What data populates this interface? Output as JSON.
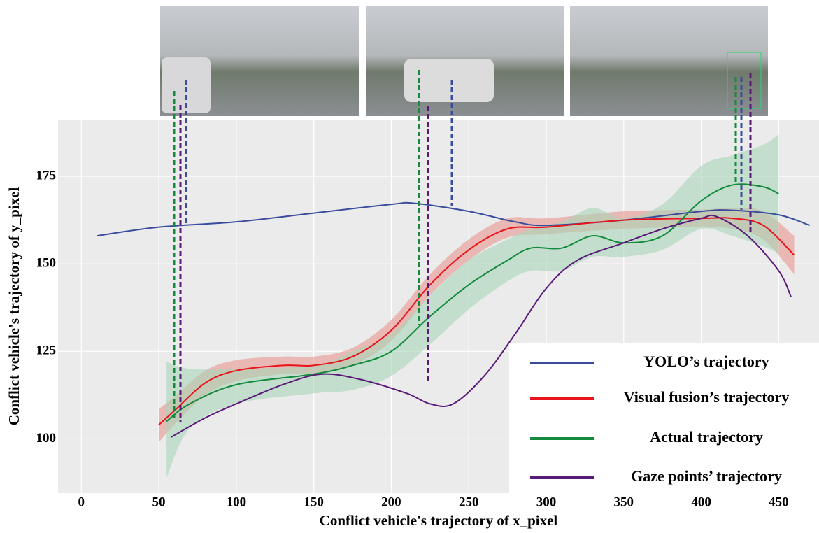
{
  "chart_data": {
    "type": "line",
    "xlabel": "Conflict vehicle's trajectory of x_pixel",
    "ylabel": "Conflict vehicle's trajectory of y_pixel",
    "xlim": [
      -15,
      476
    ],
    "ylim": [
      84.5,
      191
    ],
    "xticks": [
      0,
      50,
      100,
      150,
      200,
      250,
      300,
      350,
      400,
      450
    ],
    "yticks": [
      100,
      125,
      150,
      175
    ],
    "grid": true,
    "legend": "lower right",
    "series": [
      {
        "name": "YOLO’s trajectory",
        "color": "#3a4d9c",
        "x": [
          10,
          50,
          100,
          150,
          200,
          215,
          250,
          280,
          300,
          350,
          400,
          420,
          450,
          470
        ],
        "values": [
          158,
          160.5,
          162,
          164.5,
          167,
          167.3,
          165,
          162,
          161,
          162.5,
          165,
          165.3,
          164,
          161
        ]
      },
      {
        "name": "Visual fusion’s trajectory",
        "color": "#e8141c",
        "band_color": "#e8968f",
        "x": [
          50,
          60,
          80,
          100,
          130,
          150,
          175,
          200,
          225,
          250,
          275,
          300,
          350,
          400,
          420,
          440,
          460
        ],
        "values": [
          104,
          108,
          116,
          119.5,
          121,
          121,
          123.5,
          131,
          144,
          154,
          160,
          160.5,
          162.5,
          163,
          163,
          161,
          152.5
        ],
        "lower": [
          99,
          104,
          112.5,
          116.5,
          118.5,
          118.5,
          121,
          128,
          141,
          151,
          157.5,
          158.5,
          160,
          160.5,
          160,
          157,
          147
        ],
        "upper": [
          108.5,
          112,
          119.5,
          122.5,
          123.5,
          123.5,
          126,
          134,
          147,
          157,
          163,
          163,
          165,
          165.5,
          166,
          165,
          158
        ]
      },
      {
        "name": "Actual trajectory",
        "color": "#148a3e",
        "band_color": "#a9d6b8",
        "x": [
          55,
          70,
          100,
          150,
          175,
          200,
          225,
          250,
          275,
          290,
          310,
          330,
          350,
          375,
          400,
          420,
          440,
          450
        ],
        "values": [
          105,
          110,
          115.5,
          118.5,
          121,
          125,
          135,
          144,
          151,
          154.5,
          154.5,
          158,
          156,
          158,
          168,
          172.5,
          172,
          170
        ],
        "lower": [
          89,
          103,
          110,
          113,
          114,
          118,
          127,
          137,
          145,
          148,
          148,
          152,
          152,
          154,
          160,
          158,
          155,
          153
        ],
        "upper": [
          122,
          120,
          120,
          121,
          125,
          130,
          141,
          151,
          157,
          160,
          162,
          166,
          163,
          167,
          178,
          181,
          184,
          187
        ]
      },
      {
        "name": "Gaze points’ trajectory",
        "color": "#5a1a78",
        "x": [
          58,
          80,
          100,
          130,
          155,
          180,
          210,
          225,
          240,
          260,
          280,
          300,
          320,
          350,
          375,
          400,
          410,
          430,
          450,
          458
        ],
        "values": [
          100.5,
          106,
          110,
          115.5,
          118.5,
          117,
          113,
          110,
          110,
          118,
          130,
          143,
          151,
          156,
          160,
          163,
          163.5,
          158,
          148,
          140.5
        ]
      }
    ]
  }
}
